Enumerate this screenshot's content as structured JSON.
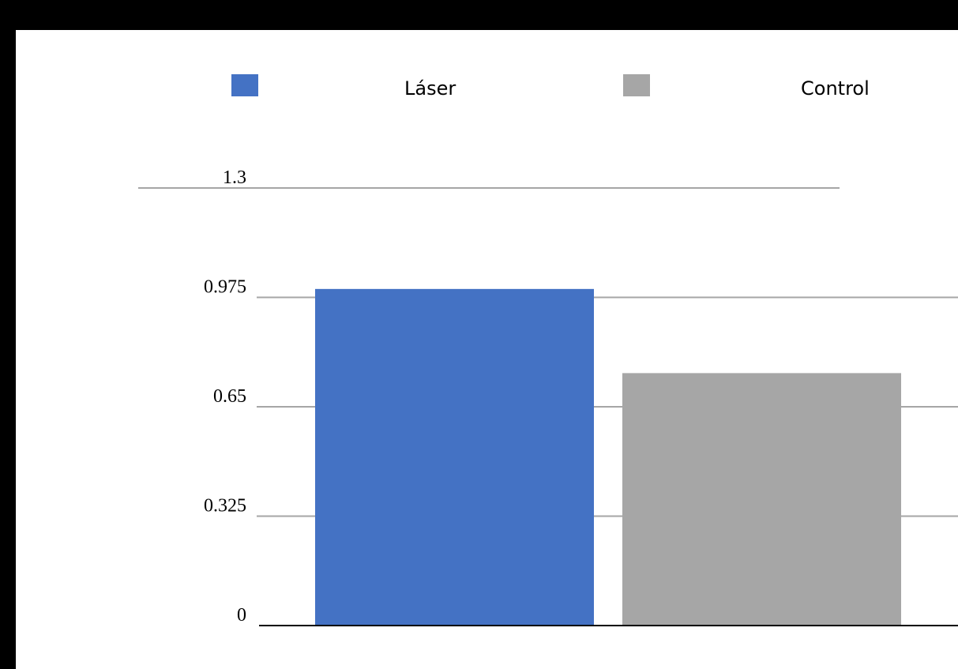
{
  "chart_data": {
    "type": "bar",
    "categories": [
      "Láser",
      "Control"
    ],
    "values": [
      1.0,
      0.75
    ],
    "colors": [
      "#4472c4",
      "#a6a6a6"
    ],
    "ylim": [
      0,
      1.3
    ],
    "yticks": [
      0,
      0.325,
      0.65,
      0.975,
      1.3
    ],
    "ytick_labels": [
      "0",
      "0.325",
      "0.65",
      "0.975",
      "1.3"
    ],
    "grid": true,
    "legend": {
      "placement": "top",
      "items": [
        {
          "label": "Láser",
          "color": "#4472c4"
        },
        {
          "label": "Control",
          "color": "#a6a6a6"
        }
      ]
    }
  }
}
